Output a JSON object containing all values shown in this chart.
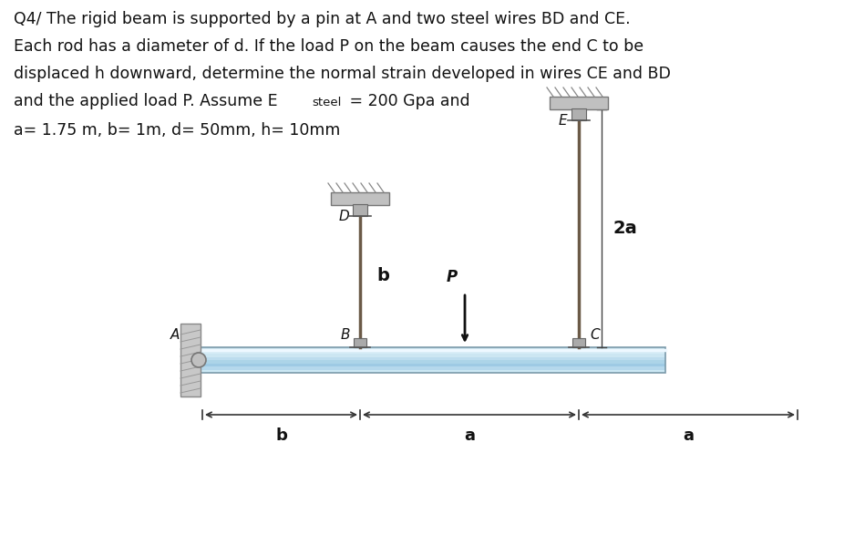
{
  "line1": "Q4/ The rigid beam is supported by a pin at A and two steel wires BD and CE.",
  "line2": "Each rod has a diameter of d. If the load P on the beam causes the end C to be",
  "line3": "displaced h downward, determine the normal strain developed in wires CE and BD",
  "line4_pre": "and the applied load P. Assume E",
  "line4_sub": "steel",
  "line4_eq": " = 200 Gpa and",
  "line5": "a= 1.75 m, b= 1m, d= 50mm, h= 10mm",
  "bg_color": "#ffffff",
  "text_color": "#111111",
  "wire_color": "#6b5a47",
  "beam_color": "#a8cfe0",
  "beam_edge": "#7a9aaa",
  "wall_color": "#b0b0b0",
  "dim_color": "#333333",
  "anchor_color": "#999999"
}
